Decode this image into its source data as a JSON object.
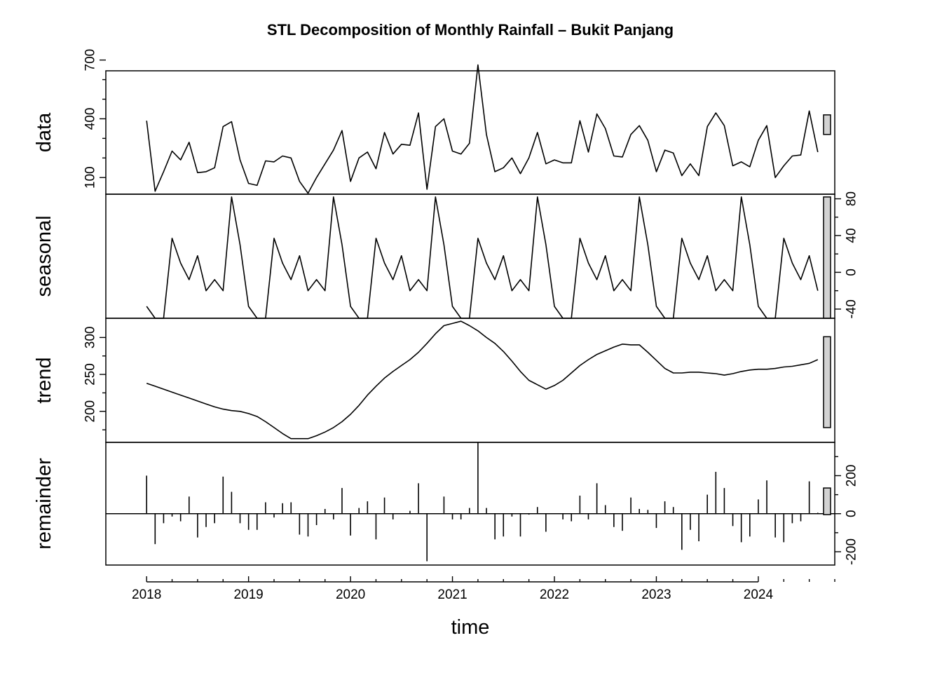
{
  "chart_data": {
    "type": "line",
    "title": "STL Decomposition of Monthly Rainfall – Bukit Panjang",
    "xlabel": "time",
    "x_start": 2018,
    "x_step": 0.083333,
    "xlim": [
      2017.6,
      2024.75
    ],
    "x_ticks": [
      2018,
      2019,
      2020,
      2021,
      2022,
      2023,
      2024
    ],
    "x_tick_labels": [
      "2018",
      "2019",
      "2020",
      "2021",
      "2022",
      "2023",
      "2024"
    ],
    "panels": [
      {
        "name": "data",
        "label": "data",
        "style": "line",
        "ylim": [
          15,
          645
        ],
        "ticks_labeled": [
          100,
          400,
          700
        ],
        "tick_labels": [
          "100",
          "400",
          "700"
        ],
        "tick_side": "left",
        "minor_ticks": [
          200,
          300,
          500,
          600
        ],
        "values": [
          390,
          30,
          130,
          235,
          190,
          280,
          125,
          130,
          150,
          360,
          385,
          190,
          70,
          60,
          185,
          180,
          210,
          200,
          80,
          20,
          100,
          170,
          240,
          340,
          80,
          200,
          230,
          145,
          330,
          220,
          270,
          265,
          430,
          40,
          360,
          400,
          235,
          220,
          275,
          675,
          320,
          130,
          150,
          200,
          120,
          200,
          330,
          170,
          190,
          175,
          175,
          390,
          230,
          425,
          350,
          210,
          205,
          320,
          365,
          290,
          130,
          240,
          225,
          110,
          170,
          110,
          360,
          430,
          365,
          160,
          180,
          155,
          290,
          365,
          100,
          160,
          210,
          215,
          440,
          230
        ],
        "scale_bar_range": [
          320,
          420
        ]
      },
      {
        "name": "seasonal",
        "label": "seasonal",
        "style": "line",
        "ylim": [
          -50,
          85
        ],
        "ticks_labeled": [
          -40,
          0,
          40,
          80
        ],
        "tick_labels": [
          "-40",
          "0",
          "40",
          "80"
        ],
        "tick_side": "right",
        "minor_ticks": [
          -20,
          20,
          60
        ],
        "values": [
          -37,
          -50,
          -50,
          37,
          10,
          -8,
          18,
          -20,
          -8,
          -20,
          82,
          30,
          -37,
          -50,
          -50,
          37,
          10,
          -8,
          18,
          -20,
          -8,
          -20,
          82,
          30,
          -37,
          -50,
          -50,
          37,
          10,
          -8,
          18,
          -20,
          -8,
          -20,
          82,
          30,
          -37,
          -50,
          -50,
          37,
          10,
          -8,
          18,
          -20,
          -8,
          -20,
          82,
          30,
          -37,
          -50,
          -50,
          37,
          10,
          -8,
          18,
          -20,
          -8,
          -20,
          82,
          30,
          -37,
          -50,
          -50,
          37,
          10,
          -8,
          18,
          -20,
          -8,
          -20,
          82,
          30,
          -37,
          -50,
          -50,
          37,
          10,
          -8,
          18,
          -20
        ],
        "scale_bar_range": [
          -50,
          82
        ]
      },
      {
        "name": "trend",
        "label": "trend",
        "style": "line",
        "ylim": [
          158,
          326
        ],
        "ticks_labeled": [
          200,
          250,
          300
        ],
        "tick_labels": [
          "200",
          "250",
          "300"
        ],
        "tick_side": "left",
        "minor_ticks": [
          175,
          225,
          275
        ],
        "values": [
          238,
          234,
          230,
          226,
          222,
          218,
          214,
          210,
          206,
          203,
          201,
          200,
          197,
          193,
          186,
          178,
          170,
          163,
          163,
          163,
          167,
          172,
          178,
          186,
          196,
          208,
          222,
          234,
          245,
          254,
          262,
          270,
          280,
          292,
          305,
          316,
          319,
          322,
          316,
          309,
          300,
          292,
          281,
          268,
          254,
          242,
          236,
          230,
          235,
          242,
          252,
          262,
          270,
          277,
          282,
          287,
          291,
          290,
          290,
          280,
          269,
          258,
          252,
          252,
          253,
          253,
          252,
          251,
          249,
          251,
          254,
          256,
          257,
          257,
          258,
          260,
          261,
          263,
          265,
          270
        ],
        "scale_bar_range": [
          178,
          301
        ]
      },
      {
        "name": "remainder",
        "label": "remainder",
        "style": "spikes",
        "ylim": [
          -270,
          375
        ],
        "ticks_labeled": [
          -200,
          0,
          200
        ],
        "tick_labels": [
          "-200",
          "0",
          "200"
        ],
        "tick_side": "right",
        "minor_ticks": [
          -100,
          100,
          300
        ],
        "values": [
          200,
          -160,
          -50,
          -15,
          -40,
          90,
          -125,
          -70,
          -50,
          195,
          115,
          -50,
          -85,
          -85,
          60,
          -20,
          55,
          60,
          -110,
          -120,
          -60,
          25,
          -30,
          135,
          -115,
          30,
          65,
          -135,
          85,
          -30,
          0,
          15,
          160,
          -250,
          0,
          90,
          -30,
          -30,
          30,
          375,
          30,
          -135,
          -120,
          -15,
          -120,
          -5,
          35,
          -95,
          0,
          -30,
          -40,
          95,
          -30,
          160,
          45,
          -70,
          -90,
          85,
          25,
          20,
          -75,
          65,
          35,
          -190,
          -85,
          -145,
          100,
          220,
          135,
          -65,
          -150,
          -120,
          75,
          175,
          -125,
          -150,
          -50,
          -40,
          170,
          5
        ],
        "scale_bar_range": [
          -5,
          135
        ]
      }
    ]
  }
}
